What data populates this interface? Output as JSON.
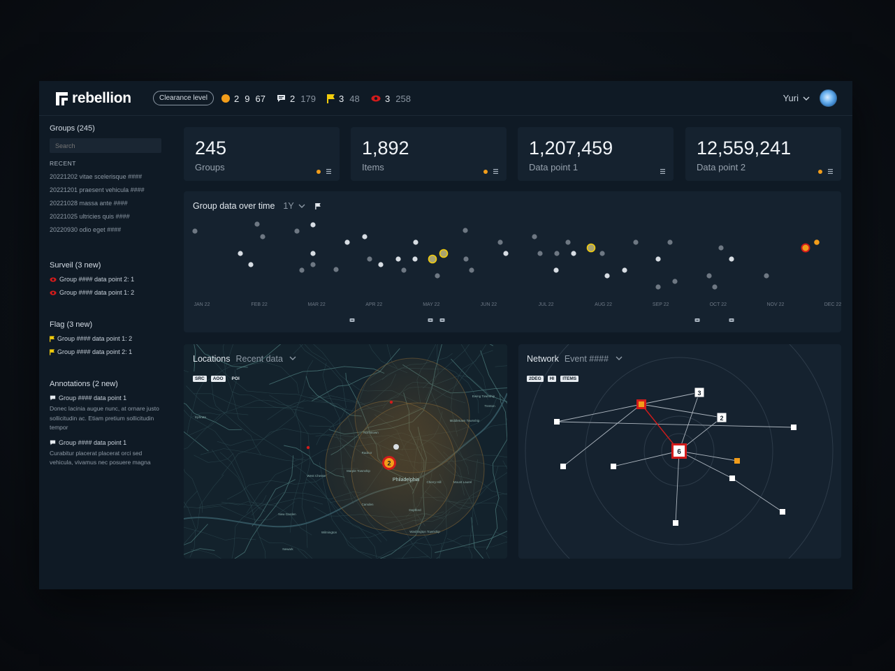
{
  "header": {
    "brand": "rebellion",
    "clearance": "Clearance level",
    "stats": [
      {
        "icon": "orange-dot-icon",
        "a": "2",
        "b1": "9",
        "b2": "67"
      },
      {
        "icon": "comment-icon",
        "a": "2",
        "b": "179"
      },
      {
        "icon": "flag-icon",
        "a": "3",
        "b": "48"
      },
      {
        "icon": "eye-icon",
        "a": "3",
        "b": "258"
      }
    ],
    "user": "Yuri"
  },
  "sidebar": {
    "groups_heading": "Groups (245)",
    "search_placeholder": "Search",
    "recent_heading": "RECENT",
    "recent": [
      "20221202 vitae scelerisque ####",
      "20221201 praesent vehicula ####",
      "20221028 massa ante ####",
      "20221025 ultricies quis ####",
      "20220930 odio eget ####"
    ],
    "surveil_heading": "Surveil (3 new)",
    "surveil": [
      "Group #### data point 2: 1",
      "Group #### data point 1: 2"
    ],
    "flag_heading": "Flag (3 new)",
    "flag": [
      "Group #### data point 1: 2",
      "Group #### data point 2: 1"
    ],
    "annotations_heading": "Annotations (2 new)",
    "annotations": [
      {
        "title": "Group #### data point 1",
        "text": "Donec lacinia augue nunc, at ornare justo sollicitudin ac. Etiam pretium sollicitudin tempor"
      },
      {
        "title": "Group #### data point 1",
        "text": "Curabitur placerat placerat orci sed vehicula, vivamus nec posuere magna"
      }
    ]
  },
  "cards": [
    {
      "value": "245",
      "label": "Groups",
      "dot": true
    },
    {
      "value": "1,892",
      "label": "Items",
      "dot": true
    },
    {
      "value": "1,207,459",
      "label": "Data point 1",
      "dot": false
    },
    {
      "value": "12,559,241",
      "label": "Data point 2",
      "dot": true
    }
  ],
  "timeline": {
    "title": "Group data over time",
    "range": "1Y",
    "months": [
      "JAN 22",
      "FEB 22",
      "MAR 22",
      "APR 22",
      "MAY 22",
      "JUN 22",
      "JUL 22",
      "AUG 22",
      "SEP 22",
      "OCT 22",
      "NOV 22",
      "DEC 22"
    ]
  },
  "locations": {
    "title": "Locations",
    "filter": "Recent data",
    "tags": [
      "SRC",
      "AOO",
      "POI"
    ],
    "cluster_count": "2",
    "labels": [
      "Philadelphia",
      "Trenton",
      "Norristown",
      "Radnor",
      "Marple Township",
      "West Chester",
      "New Garden",
      "Wilmington",
      "Newark",
      "Camden",
      "Cherry Hill",
      "Mount Laurel",
      "Deptford",
      "Washington Township",
      "Middletown Township",
      "Ewing Township",
      "Ephrata"
    ]
  },
  "network": {
    "title": "Network",
    "filter": "Event ####",
    "tags": [
      "2DEG",
      "HI",
      "ITEMS"
    ],
    "nodes_labels": [
      "3",
      "2",
      "6"
    ]
  },
  "colors": {
    "accent_orange": "#f29d1a",
    "alert_red": "#d21b1b",
    "flag_yellow": "#f2cc0c",
    "panel": "#15222f"
  }
}
